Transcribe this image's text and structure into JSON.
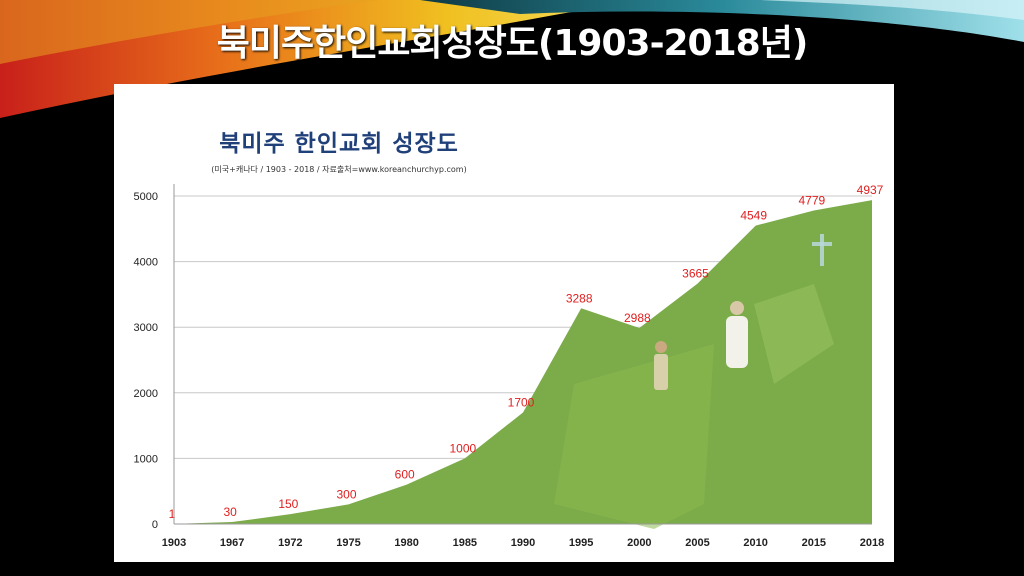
{
  "slide": {
    "title": "북미주한인교회성장도(1903-2018년)"
  },
  "colors": {
    "background": "#000000",
    "area_fill": "#7cab4a",
    "data_label": "#e02020",
    "chart_title": "#20407a",
    "banner_red": "#c8201a",
    "banner_yellow": "#f0c020",
    "banner_teal": "#2a8a9a"
  },
  "chart_data": {
    "type": "area",
    "title": "북미주 한인교회 성장도",
    "subtitle": "(미국+캐나다 / 1903 - 2018 / 자료출처=www.koreanchurchyp.com)",
    "categories": [
      "1903",
      "1967",
      "1972",
      "1975",
      "1980",
      "1985",
      "1990",
      "1995",
      "2000",
      "2005",
      "2010",
      "2015",
      "2018"
    ],
    "values": [
      1,
      30,
      150,
      300,
      600,
      1000,
      1700,
      3288,
      2988,
      3665,
      4549,
      4779,
      4937
    ],
    "data_labels": [
      "1",
      "30",
      "150",
      "300",
      "600",
      "1000",
      "1700",
      "3288",
      "2988",
      "3665",
      "4549",
      "4779",
      "4937"
    ],
    "y_ticks": [
      "0",
      "1000",
      "2000",
      "3000",
      "4000",
      "5000"
    ],
    "ylim": [
      0,
      5000
    ],
    "xlabel": "",
    "ylabel": "",
    "grid": true,
    "legend": "none"
  }
}
